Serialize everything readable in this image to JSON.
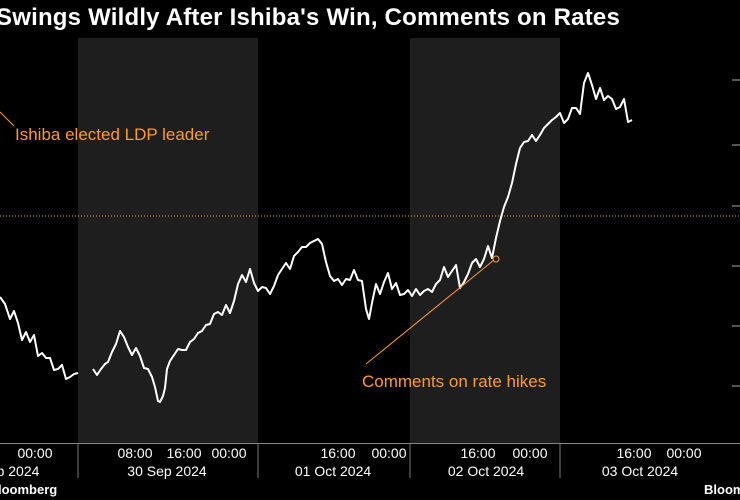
{
  "title": "Swings Wildly After Ishiba's Win, Comments on Rates",
  "source_left": "loomberg",
  "source_right": "Bloom",
  "colors": {
    "background": "#000000",
    "shade": "#1e1e1e",
    "line": "#ffffff",
    "annotation": "#ff9a2e",
    "grid": "#444444"
  },
  "chart_data": {
    "type": "line",
    "title": "Swings Wildly After Ishiba's Win, Comments on Rates",
    "xlabel": "",
    "ylabel": "",
    "grid": false,
    "x_tick_labels": [
      {
        "time": "00:00",
        "date": "p 2024"
      },
      {
        "time": "08:00",
        "date": ""
      },
      {
        "time": "16:00",
        "date": "30 Sep 2024"
      },
      {
        "time": "00:00",
        "date": ""
      },
      {
        "time": "16:00",
        "date": "01 Oct 2024"
      },
      {
        "time": "00:00",
        "date": ""
      },
      {
        "time": "16:00",
        "date": "02 Oct 2024"
      },
      {
        "time": "00:00",
        "date": ""
      },
      {
        "time": "16:00",
        "date": "03 Oct 2024"
      },
      {
        "time": "00:00",
        "date": ""
      }
    ],
    "annotations": [
      {
        "text": "Ishiba elected LDP leader"
      },
      {
        "text": "Comments on rate hikes"
      }
    ],
    "series": [
      {
        "values": [
          [
            0,
            300
          ],
          [
            5,
            305
          ],
          [
            10,
            318
          ],
          [
            14,
            308
          ],
          [
            18,
            325
          ],
          [
            22,
            340
          ],
          [
            26,
            330
          ],
          [
            30,
            345
          ],
          [
            34,
            336
          ],
          [
            38,
            355
          ],
          [
            42,
            350
          ],
          [
            46,
            360
          ],
          [
            50,
            358
          ],
          [
            54,
            368
          ],
          [
            58,
            372
          ],
          [
            62,
            366
          ],
          [
            66,
            378
          ],
          [
            70,
            374
          ],
          [
            74,
            376
          ],
          [
            78,
            373
          ],
          [
            93,
            372
          ],
          [
            97,
            376
          ],
          [
            101,
            368
          ],
          [
            105,
            361
          ],
          [
            108,
            364
          ],
          [
            112,
            352
          ],
          [
            116,
            342
          ],
          [
            120,
            334
          ],
          [
            124,
            338
          ],
          [
            128,
            346
          ],
          [
            132,
            352
          ],
          [
            136,
            350
          ],
          [
            140,
            356
          ],
          [
            144,
            366
          ],
          [
            148,
            372
          ],
          [
            152,
            378
          ],
          [
            155,
            386
          ],
          [
            158,
            398
          ],
          [
            160,
            404
          ],
          [
            163,
            396
          ],
          [
            165,
            386
          ],
          [
            167,
            372
          ],
          [
            170,
            362
          ],
          [
            174,
            354
          ],
          [
            178,
            346
          ],
          [
            182,
            352
          ],
          [
            186,
            350
          ],
          [
            190,
            340
          ],
          [
            194,
            342
          ],
          [
            198,
            334
          ],
          [
            202,
            330
          ],
          [
            206,
            322
          ],
          [
            210,
            326
          ],
          [
            214,
            314
          ],
          [
            218,
            310
          ],
          [
            222,
            318
          ],
          [
            226,
            306
          ],
          [
            230,
            312
          ],
          [
            234,
            298
          ],
          [
            238,
            286
          ],
          [
            242,
            275
          ],
          [
            246,
            280
          ],
          [
            250,
            272
          ],
          [
            254,
            284
          ],
          [
            258,
            290
          ],
          [
            262,
            284
          ],
          [
            266,
            290
          ],
          [
            270,
            294
          ],
          [
            274,
            284
          ],
          [
            278,
            278
          ],
          [
            282,
            270
          ],
          [
            286,
            262
          ],
          [
            290,
            266
          ],
          [
            294,
            258
          ],
          [
            298,
            252
          ],
          [
            302,
            245
          ],
          [
            306,
            250
          ],
          [
            310,
            244
          ],
          [
            314,
            240
          ],
          [
            318,
            236
          ],
          [
            322,
            246
          ],
          [
            326,
            262
          ],
          [
            330,
            274
          ],
          [
            334,
            284
          ],
          [
            338,
            280
          ],
          [
            342,
            284
          ],
          [
            346,
            276
          ],
          [
            350,
            282
          ],
          [
            354,
            270
          ],
          [
            358,
            278
          ],
          [
            362,
            284
          ],
          [
            366,
            310
          ],
          [
            369,
            318
          ],
          [
            372,
            300
          ],
          [
            376,
            286
          ],
          [
            380,
            294
          ],
          [
            384,
            280
          ],
          [
            388,
            276
          ],
          [
            392,
            290
          ],
          [
            396,
            282
          ],
          [
            400,
            292
          ],
          [
            404,
            296
          ],
          [
            408,
            290
          ],
          [
            412,
            294
          ],
          [
            416,
            292
          ],
          [
            420,
            296
          ],
          [
            424,
            290
          ],
          [
            428,
            286
          ],
          [
            432,
            294
          ],
          [
            436,
            284
          ],
          [
            440,
            278
          ],
          [
            444,
            270
          ],
          [
            448,
            278
          ],
          [
            452,
            270
          ],
          [
            456,
            262
          ],
          [
            460,
            290
          ],
          [
            464,
            282
          ],
          [
            468,
            272
          ],
          [
            472,
            266
          ],
          [
            476,
            260
          ],
          [
            480,
            266
          ],
          [
            484,
            256
          ],
          [
            488,
            248
          ],
          [
            492,
            258
          ],
          [
            496,
            236
          ],
          [
            500,
            224
          ],
          [
            504,
            208
          ],
          [
            508,
            196
          ],
          [
            512,
            180
          ],
          [
            516,
            166
          ],
          [
            520,
            148
          ],
          [
            524,
            140
          ],
          [
            528,
            144
          ],
          [
            532,
            136
          ],
          [
            536,
            140
          ],
          [
            540,
            132
          ],
          [
            544,
            130
          ],
          [
            548,
            124
          ],
          [
            552,
            118
          ],
          [
            556,
            120
          ],
          [
            560,
            114
          ],
          [
            564,
            122
          ],
          [
            568,
            116
          ],
          [
            572,
            110
          ],
          [
            576,
            108
          ],
          [
            580,
            112
          ],
          [
            584,
            86
          ],
          [
            588,
            74
          ],
          [
            592,
            84
          ],
          [
            596,
            96
          ],
          [
            600,
            90
          ],
          [
            604,
            100
          ],
          [
            608,
            94
          ],
          [
            612,
            102
          ],
          [
            616,
            110
          ],
          [
            620,
            106
          ],
          [
            624,
            96
          ],
          [
            628,
            124
          ],
          [
            632,
            120
          ]
        ]
      }
    ]
  }
}
